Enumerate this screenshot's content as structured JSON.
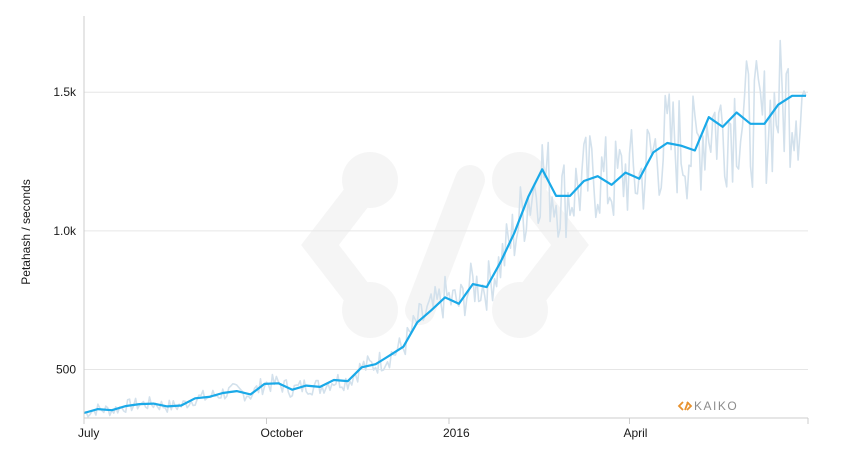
{
  "chart_data": {
    "type": "line",
    "ylabel": "Petahash / seconds",
    "x_ticks": [
      {
        "date": "2015-07-01",
        "label": "July"
      },
      {
        "date": "2015-10-01",
        "label": "October"
      },
      {
        "date": "2016-01-01",
        "label": "2016"
      },
      {
        "date": "2016-04-01",
        "label": "April"
      }
    ],
    "y_ticks": [
      {
        "value": 500,
        "label": "500"
      },
      {
        "value": 1000,
        "label": "1.0k"
      },
      {
        "value": 1500,
        "label": "1.5k"
      }
    ],
    "xlim": [
      "2015-07-01",
      "2016-06-30"
    ],
    "ylim": [
      325,
      1775
    ],
    "grid": "horizontal",
    "colors": {
      "smoothed": "#1aa9e8",
      "raw": "#d3e1ec",
      "grid": "#e6e6e6",
      "brand": "#e8922e",
      "brand_text": "#8c8c8c"
    },
    "series": [
      {
        "role": "smoothed",
        "points": [
          [
            "2015-07-01",
            343
          ],
          [
            "2015-07-08",
            357
          ],
          [
            "2015-07-15",
            353
          ],
          [
            "2015-07-22",
            368
          ],
          [
            "2015-07-29",
            375
          ],
          [
            "2015-08-05",
            377
          ],
          [
            "2015-08-12",
            367
          ],
          [
            "2015-08-19",
            370
          ],
          [
            "2015-08-26",
            396
          ],
          [
            "2015-09-02",
            401
          ],
          [
            "2015-09-09",
            415
          ],
          [
            "2015-09-16",
            422
          ],
          [
            "2015-09-23",
            410
          ],
          [
            "2015-09-30",
            448
          ],
          [
            "2015-10-07",
            450
          ],
          [
            "2015-10-14",
            427
          ],
          [
            "2015-10-21",
            442
          ],
          [
            "2015-10-28",
            437
          ],
          [
            "2015-11-04",
            462
          ],
          [
            "2015-11-11",
            458
          ],
          [
            "2015-11-18",
            508
          ],
          [
            "2015-11-25",
            519
          ],
          [
            "2015-12-02",
            550
          ],
          [
            "2015-12-09",
            582
          ],
          [
            "2015-12-16",
            670
          ],
          [
            "2015-12-23",
            713
          ],
          [
            "2015-12-30",
            760
          ],
          [
            "2016-01-06",
            737
          ],
          [
            "2016-01-13",
            808
          ],
          [
            "2016-01-20",
            797
          ],
          [
            "2016-01-27",
            887
          ],
          [
            "2016-02-03",
            993
          ],
          [
            "2016-02-10",
            1123
          ],
          [
            "2016-02-17",
            1222
          ],
          [
            "2016-02-24",
            1126
          ],
          [
            "2016-03-02",
            1126
          ],
          [
            "2016-03-09",
            1180
          ],
          [
            "2016-03-16",
            1197
          ],
          [
            "2016-03-23",
            1166
          ],
          [
            "2016-03-30",
            1210
          ],
          [
            "2016-04-06",
            1188
          ],
          [
            "2016-04-13",
            1283
          ],
          [
            "2016-04-20",
            1317
          ],
          [
            "2016-04-27",
            1307
          ],
          [
            "2016-05-04",
            1290
          ],
          [
            "2016-05-11",
            1410
          ],
          [
            "2016-05-18",
            1375
          ],
          [
            "2016-05-25",
            1427
          ],
          [
            "2016-06-01",
            1386
          ],
          [
            "2016-06-08",
            1386
          ],
          [
            "2016-06-15",
            1455
          ],
          [
            "2016-06-22",
            1487
          ],
          [
            "2016-06-29",
            1487
          ]
        ]
      }
    ]
  },
  "watermark": {
    "brand": "KAIKO"
  }
}
